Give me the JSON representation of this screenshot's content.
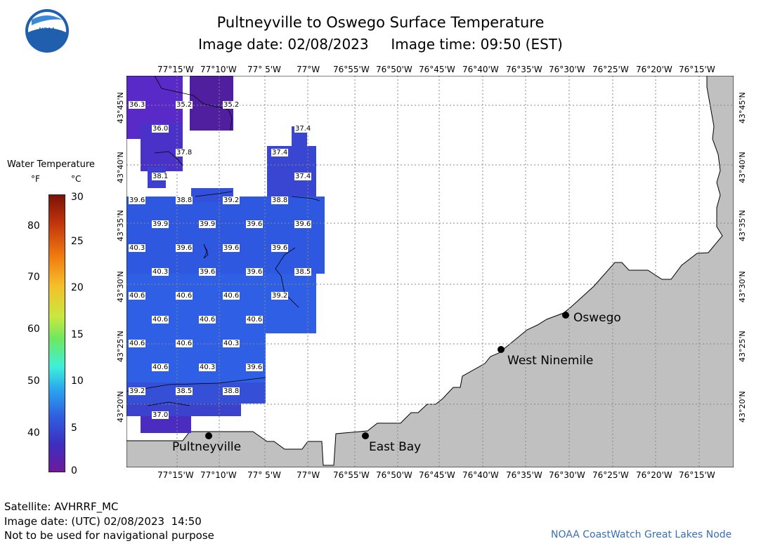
{
  "header": {
    "title": "Pultneyville to Oswego Surface Temperature",
    "subtitle": "Image date: 02/08/2023     Image time: 09:50 (EST)"
  },
  "logo": {
    "text": "NOAA"
  },
  "legend": {
    "title": "Water Temperature",
    "unit_f": "°F",
    "unit_c": "°C",
    "f_ticks": [
      "80",
      "70",
      "60",
      "50",
      "40"
    ],
    "c_ticks": [
      "30",
      "25",
      "20",
      "15",
      "10",
      "5",
      "0"
    ]
  },
  "axes": {
    "lon_labels": [
      "77°15'W",
      "77°10'W",
      "77° 5'W",
      "77°W",
      "76°55'W",
      "76°50'W",
      "76°45'W",
      "76°40'W",
      "76°35'W",
      "76°30'W",
      "76°25'W",
      "76°20'W",
      "76°15'W"
    ],
    "lat_labels": [
      "43°45'N",
      "43°40'N",
      "43°35'N",
      "43°30'N",
      "43°25'N",
      "43°20'N"
    ]
  },
  "temperatures": [
    "36.3",
    "35.2",
    "35.2",
    "36.0",
    "37.4",
    "37.8",
    "37.4",
    "38.1",
    "37.4",
    "39.6",
    "38.8",
    "39.2",
    "38.8",
    "39.9",
    "39.9",
    "39.6",
    "39.6",
    "40.3",
    "39.6",
    "39.6",
    "39.6",
    "40.3",
    "39.6",
    "39.6",
    "38.5",
    "40.6",
    "40.6",
    "40.6",
    "39.2",
    "40.6",
    "40.6",
    "40.6",
    "40.6",
    "40.6",
    "40.3",
    "40.6",
    "40.3",
    "39.6",
    "39.2",
    "38.5",
    "38.8",
    "37.0"
  ],
  "places": {
    "oswego": "Oswego",
    "west_ninemile": "West Ninemile",
    "east_bay": "East Bay",
    "pultneyville": "Pultneyville"
  },
  "footer": {
    "satellite": "Satellite: AVHRRF_MC",
    "utc_date": "Image date: (UTC) 02/08/2023  14:50",
    "disclaimer": "Not to be used for navigational purpose",
    "credit": "NOAA CoastWatch Great Lakes Node"
  }
}
